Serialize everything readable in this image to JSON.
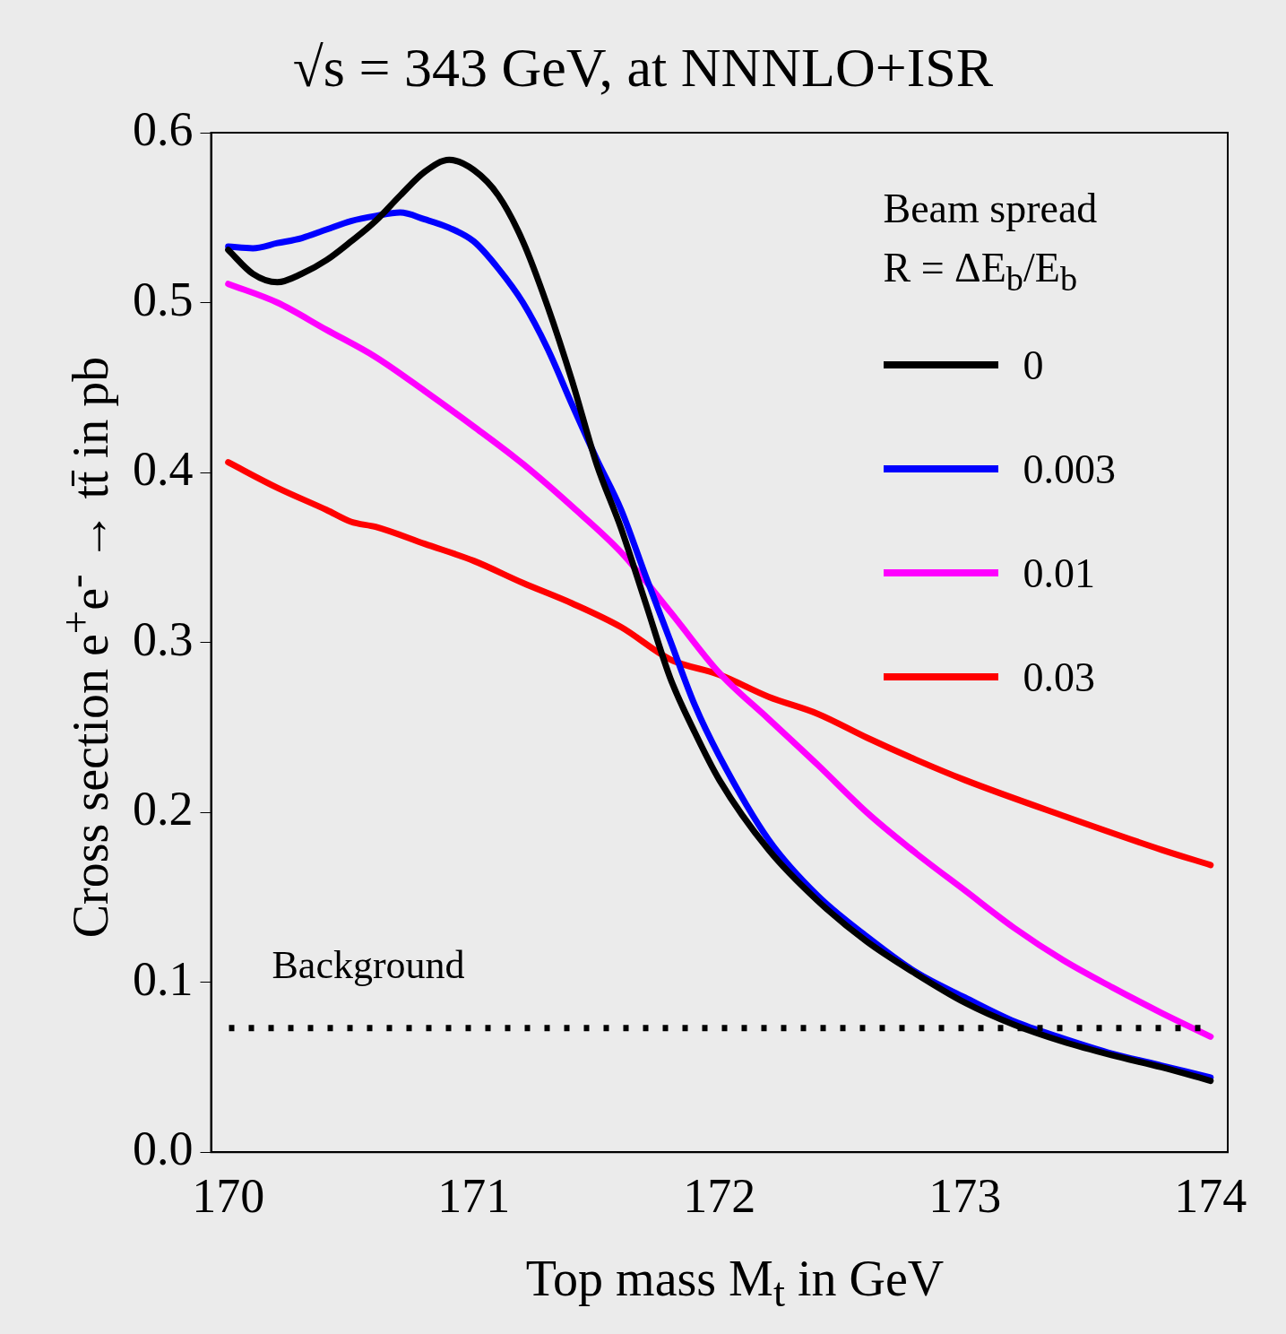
{
  "chart_data": {
    "type": "line",
    "title": "√s = 343 GeV, at NNNLO+ISR",
    "xlabel": "Top mass M$_{t}$ in GeV",
    "ylabel": "Cross section e$^{+}$e$^{-}$ → tt̄ in pb",
    "legend_title": "Beam spread\nR =  ΔE$_{b}$/E$_{b}$",
    "legend": "top right",
    "grid": false,
    "marker": "none",
    "line_style": "solid",
    "xlim": [
      169.93,
      174.07
    ],
    "xticks": [
      170,
      171,
      172,
      173,
      174
    ],
    "ylim": [
      0,
      0.6
    ],
    "yticks": [
      {
        "value": 0,
        "label": "0.0"
      },
      0.1,
      0.2,
      0.3,
      0.4,
      0.5,
      0.6
    ],
    "ref_lines": [
      {
        "axis": "y",
        "value": 0.073,
        "label": "Background",
        "color": "#000000",
        "line_style": "dotted"
      }
    ],
    "series": [
      {
        "name": "0",
        "color": "#000000",
        "x": [
          170,
          170.1,
          170.2,
          170.3,
          170.4,
          170.5,
          170.6,
          170.7,
          170.8,
          170.9,
          171,
          171.1,
          171.2,
          171.3,
          171.4,
          171.5,
          171.6,
          171.7,
          171.8,
          171.9,
          172,
          172.2,
          172.4,
          172.6,
          172.8,
          173,
          173.2,
          173.4,
          173.6,
          173.8,
          174
        ],
        "values": [
          0.531,
          0.517,
          0.512,
          0.517,
          0.525,
          0.536,
          0.548,
          0.563,
          0.577,
          0.584,
          0.578,
          0.563,
          0.536,
          0.498,
          0.454,
          0.405,
          0.367,
          0.323,
          0.279,
          0.247,
          0.219,
          0.178,
          0.148,
          0.124,
          0.105,
          0.088,
          0.075,
          0.065,
          0.057,
          0.05,
          0.042
        ]
      },
      {
        "name": "0.003",
        "color": "#0000ff",
        "x": [
          170,
          170.1,
          170.2,
          170.3,
          170.4,
          170.5,
          170.6,
          170.7,
          170.8,
          170.9,
          171,
          171.1,
          171.2,
          171.3,
          171.4,
          171.5,
          171.6,
          171.7,
          171.8,
          171.9,
          172,
          172.2,
          172.4,
          172.6,
          172.8,
          173,
          173.2,
          173.4,
          173.6,
          173.8,
          174
        ],
        "values": [
          0.533,
          0.532,
          0.535,
          0.538,
          0.543,
          0.548,
          0.551,
          0.553,
          0.549,
          0.544,
          0.536,
          0.52,
          0.5,
          0.473,
          0.44,
          0.408,
          0.378,
          0.339,
          0.301,
          0.263,
          0.233,
          0.184,
          0.151,
          0.127,
          0.106,
          0.091,
          0.077,
          0.067,
          0.058,
          0.051,
          0.044
        ]
      },
      {
        "name": "0.01",
        "color": "#ff00ff",
        "x": [
          170,
          170.2,
          170.4,
          170.6,
          170.8,
          171,
          171.2,
          171.4,
          171.6,
          171.8,
          172,
          172.2,
          172.4,
          172.6,
          172.8,
          173,
          173.2,
          173.4,
          173.6,
          173.8,
          174
        ],
        "values": [
          0.511,
          0.5,
          0.484,
          0.468,
          0.448,
          0.427,
          0.405,
          0.38,
          0.353,
          0.318,
          0.282,
          0.255,
          0.228,
          0.2,
          0.176,
          0.154,
          0.132,
          0.113,
          0.097,
          0.082,
          0.068
        ]
      },
      {
        "name": "0.03",
        "color": "#ff0000",
        "x": [
          170,
          170.2,
          170.4,
          170.5,
          170.6,
          170.8,
          171,
          171.2,
          171.4,
          171.6,
          171.8,
          172,
          172.2,
          172.4,
          172.6,
          172.8,
          173,
          173.4,
          173.8,
          174
        ],
        "values": [
          0.406,
          0.391,
          0.378,
          0.371,
          0.368,
          0.358,
          0.348,
          0.335,
          0.323,
          0.309,
          0.29,
          0.281,
          0.268,
          0.258,
          0.244,
          0.231,
          0.219,
          0.198,
          0.178,
          0.169
        ]
      }
    ]
  }
}
